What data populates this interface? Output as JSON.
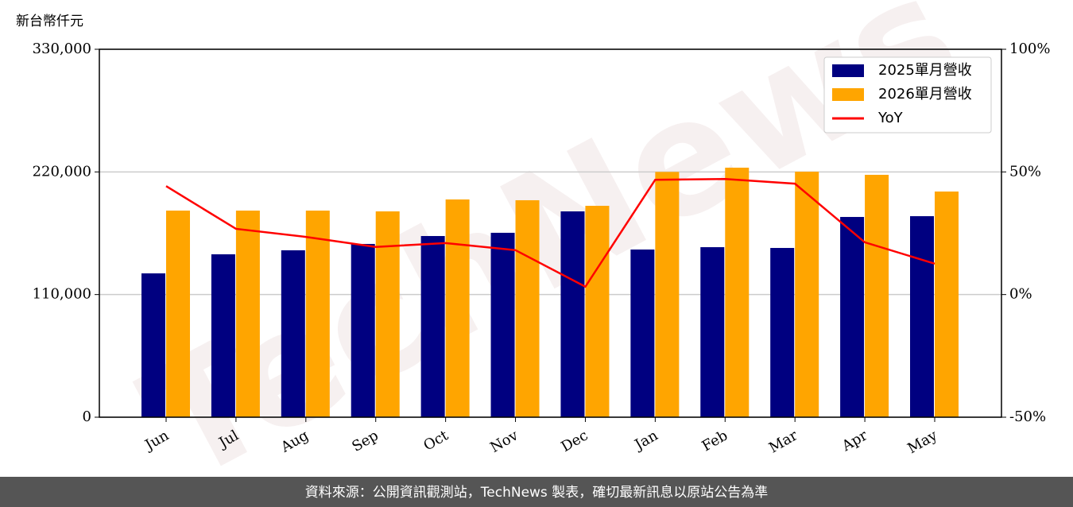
{
  "chart_data": {
    "type": "bar_line",
    "y_label": "新台幣仟元",
    "watermark": "TechNews",
    "footer": "資料來源：公開資訊觀測站，TechNews 製表，確切最新訊息以原站公告為準",
    "categories": [
      "Jun",
      "Jul",
      "Aug",
      "Sep",
      "Oct",
      "Nov",
      "Dec",
      "Jan",
      "Feb",
      "Mar",
      "Apr",
      "May"
    ],
    "series": [
      {
        "name": "2025單月營收",
        "color": "#000080",
        "type": "bar",
        "values": [
          129000,
          146100,
          149700,
          155400,
          162500,
          165400,
          184600,
          150400,
          152500,
          151800,
          179600,
          180300
        ]
      },
      {
        "name": "2026單月營收",
        "color": "#ffa500",
        "type": "bar",
        "values": [
          185300,
          185300,
          185300,
          184600,
          195300,
          194600,
          189600,
          220000,
          223800,
          220200,
          217400,
          202400
        ]
      },
      {
        "name": "YoY",
        "color": "#ff0000",
        "type": "line",
        "axis": "y2",
        "values": [
          44.2,
          26.8,
          23.5,
          19.4,
          21.0,
          18.1,
          3.2,
          46.8,
          47.1,
          45.2,
          21.3,
          12.6
        ]
      }
    ],
    "ylim": [
      0,
      330000
    ],
    "yticks": [
      0,
      {
        "value": 110000,
        "label": "110,000"
      },
      {
        "value": 220000,
        "label": "220,000"
      },
      {
        "value": 330000,
        "label": "330,000"
      }
    ],
    "y2lim": [
      -50,
      100
    ],
    "y2ticks": [
      {
        "value": -50,
        "label": "-50%"
      },
      {
        "value": 0,
        "label": "0%"
      },
      {
        "value": 50,
        "label": "50%"
      },
      {
        "value": 100,
        "label": "100%"
      }
    ],
    "grid": true,
    "legend": "upper right"
  }
}
